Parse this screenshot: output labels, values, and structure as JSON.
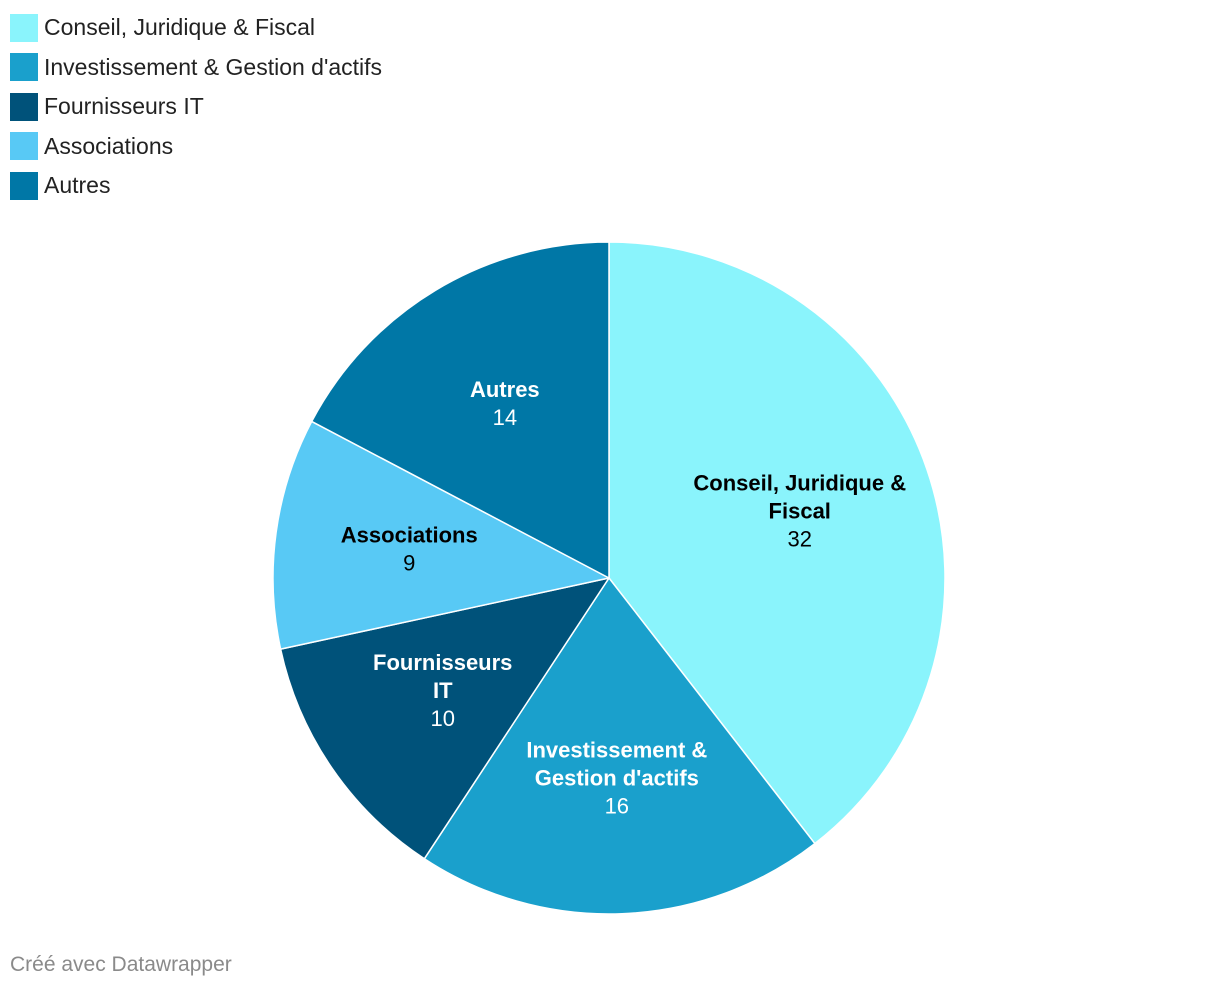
{
  "chart_data": {
    "type": "pie",
    "categories": [
      "Conseil, Juridique & Fiscal",
      "Investissement & Gestion d'actifs",
      "Fournisseurs IT",
      "Associations",
      "Autres"
    ],
    "values": [
      32,
      16,
      10,
      9,
      14
    ],
    "slice_labels": [
      [
        "Conseil, Juridique &",
        "Fiscal"
      ],
      [
        "Investissement &",
        "Gestion d'actifs"
      ],
      [
        "Fournisseurs",
        "IT"
      ],
      [
        "Associations"
      ],
      [
        "Autres"
      ]
    ],
    "colors": [
      "#8af4fc",
      "#1aa0cc",
      "#00527a",
      "#58c9f5",
      "#0077a6"
    ],
    "label_colors": [
      "#000000",
      "#ffffff",
      "#ffffff",
      "#000000",
      "#ffffff"
    ],
    "legend_position": "top-left",
    "start_angle_deg": 0,
    "direction": "clockwise"
  },
  "legend": {
    "items": [
      {
        "label": "Conseil, Juridique & Fiscal",
        "color": "#8af4fc"
      },
      {
        "label": "Investissement & Gestion d'actifs",
        "color": "#1aa0cc"
      },
      {
        "label": "Fournisseurs IT",
        "color": "#00527a"
      },
      {
        "label": "Associations",
        "color": "#58c9f5"
      },
      {
        "label": "Autres",
        "color": "#0077a6"
      }
    ]
  },
  "footer": {
    "credit": "Créé avec Datawrapper"
  }
}
